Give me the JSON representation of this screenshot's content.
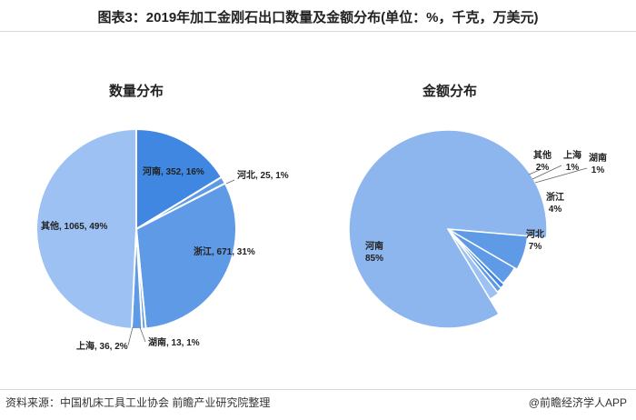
{
  "figure": {
    "title": "图表3：2019年加工金刚石出口数量及金额分布(单位：%，千克，万美元)",
    "source": "资料来源：中国机床工具工业协会 前瞻产业研究院整理",
    "brand": "@前瞻经济学人APP"
  },
  "colors": {
    "bright_blue": "#3f87e0",
    "mid_blue": "#5e9ae6",
    "light_blue": "#9cc1f2",
    "big_light_blue": "#8db5ee"
  },
  "chart_data": [
    {
      "type": "pie",
      "title": "数量分布",
      "slices": [
        {
          "name": "河南",
          "value": 352,
          "pct": 16,
          "label": "河南, 352, 16%",
          "color": "#3f87e0"
        },
        {
          "name": "河北",
          "value": 25,
          "pct": 1,
          "label": "河北, 25, 1%",
          "color": "#5e9ae6"
        },
        {
          "name": "浙江",
          "value": 671,
          "pct": 31,
          "label": "浙江, 671, 31%",
          "color": "#5e9ae6"
        },
        {
          "name": "湖南",
          "value": 13,
          "pct": 1,
          "label": "湖南, 13, 1%",
          "color": "#5e9ae6"
        },
        {
          "name": "上海",
          "value": 36,
          "pct": 2,
          "label": "上海, 36, 2%",
          "color": "#5e9ae6"
        },
        {
          "name": "其他",
          "value": 1065,
          "pct": 49,
          "label": "其他, 1065, 49%",
          "color": "#9cc1f2"
        }
      ]
    },
    {
      "type": "pie",
      "title": "金额分布",
      "slices": [
        {
          "name": "河南",
          "pct": 85,
          "label_name": "河南",
          "label_pct": "85%",
          "color": "#8db5ee"
        },
        {
          "name": "河北",
          "pct": 7,
          "label_name": "河北",
          "label_pct": "7%",
          "color": "#5e9ae6"
        },
        {
          "name": "浙江",
          "pct": 4,
          "label_name": "浙江",
          "label_pct": "4%",
          "color": "#5e9ae6"
        },
        {
          "name": "湖南",
          "pct": 1,
          "label_name": "湖南",
          "label_pct": "1%",
          "color": "#3f87e0"
        },
        {
          "name": "上海",
          "pct": 1,
          "label_name": "上海",
          "label_pct": "1%",
          "color": "#5e9ae6"
        },
        {
          "name": "其他",
          "pct": 2,
          "label_name": "其他",
          "label_pct": "2%",
          "color": "#9cc1f2"
        }
      ]
    }
  ]
}
